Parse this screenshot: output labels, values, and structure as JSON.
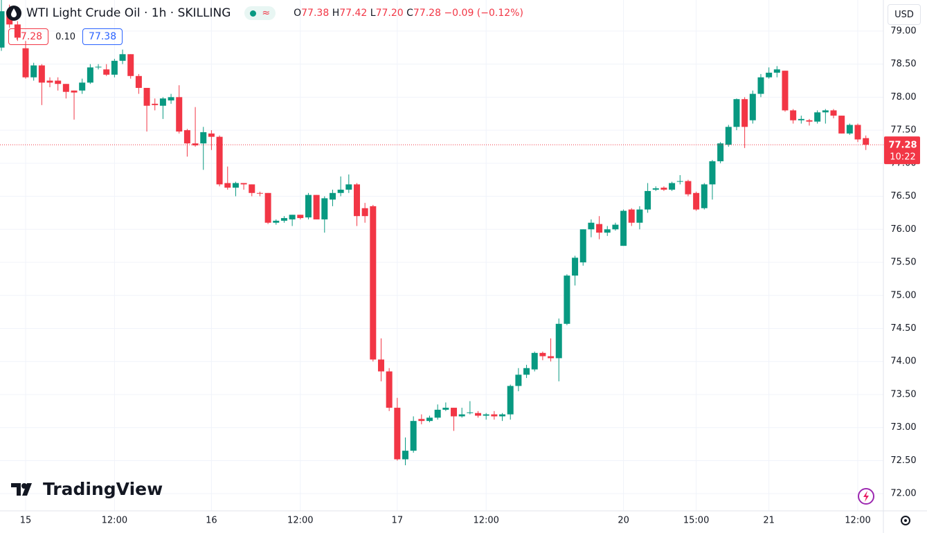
{
  "header": {
    "title": "WTI Light Crude Oil · 1h · SKILLING",
    "ohlc": [
      {
        "label": "O",
        "value": "77.38"
      },
      {
        "label": "H",
        "value": "77.42"
      },
      {
        "label": "L",
        "value": "77.20"
      },
      {
        "label": "C",
        "value": "77.28"
      }
    ],
    "change": "−0.09 (−0.12%)",
    "bid": "77.28",
    "spread": "0.10",
    "ask": "77.38"
  },
  "currency": "USD",
  "logo": "TradingView",
  "chart_data": {
    "type": "candlestick",
    "up_color": "#089981",
    "down_color": "#f23645",
    "grid": true,
    "categories": [
      null,
      null,
      null,
      "15",
      null,
      null,
      null,
      null,
      null,
      null,
      null,
      null,
      null,
      null,
      "12:00",
      null,
      null,
      null,
      null,
      null,
      null,
      null,
      null,
      null,
      null,
      null,
      "16",
      null,
      null,
      null,
      null,
      null,
      null,
      null,
      null,
      null,
      null,
      "12:00",
      null,
      null,
      null,
      null,
      null,
      null,
      null,
      null,
      null,
      null,
      null,
      "17",
      null,
      null,
      null,
      null,
      null,
      null,
      null,
      null,
      null,
      null,
      "12:00",
      null,
      null,
      null,
      null,
      null,
      null,
      null,
      null,
      null,
      null,
      null,
      null,
      null,
      null,
      null,
      null,
      "20",
      null,
      null,
      null,
      null,
      null,
      null,
      null,
      null,
      "15:00",
      null,
      null,
      null,
      null,
      null,
      null,
      null,
      null,
      "21",
      null,
      null,
      null,
      null,
      null,
      null,
      null,
      null,
      null,
      null,
      "12:00",
      null
    ],
    "open": [
      78.75,
      79.3,
      79.1,
      78.74,
      78.3,
      78.48,
      78.25,
      78.25,
      78.2,
      78.1,
      78.1,
      78.22,
      78.45,
      78.42,
      78.34,
      78.55,
      78.65,
      78.32,
      78.14,
      77.9,
      77.87,
      77.95,
      78.0,
      77.5,
      77.3,
      77.3,
      77.45,
      77.4,
      76.7,
      76.63,
      76.7,
      76.68,
      76.55,
      76.55,
      76.1,
      76.13,
      76.15,
      76.22,
      76.18,
      76.52,
      76.15,
      76.45,
      76.55,
      76.6,
      76.68,
      76.32,
      76.35,
      74.03,
      73.85,
      73.3,
      72.52,
      72.65,
      73.13,
      73.1,
      73.15,
      73.27,
      73.3,
      73.17,
      73.22,
      73.22,
      73.18,
      73.2,
      73.17,
      73.2,
      73.63,
      73.8,
      73.88,
      74.13,
      74.08,
      74.05,
      74.57,
      75.3,
      75.5,
      76.0,
      76.08,
      75.95,
      76.0,
      75.75,
      76.3,
      76.1,
      76.3,
      76.6,
      76.63,
      76.6,
      76.72,
      76.73,
      76.55,
      76.32,
      76.68,
      77.03,
      77.28,
      77.55,
      77.97,
      77.65,
      78.05,
      78.3,
      78.37,
      78.4,
      77.8,
      77.65,
      77.65,
      77.63,
      77.77,
      77.8,
      77.72,
      77.45,
      77.58,
      77.38
    ],
    "high": [
      79.5,
      79.4,
      79.15,
      78.85,
      78.52,
      78.5,
      78.3,
      78.3,
      78.2,
      78.1,
      78.28,
      78.5,
      78.5,
      78.5,
      78.58,
      78.72,
      78.65,
      78.35,
      78.14,
      77.98,
      78.0,
      78.05,
      78.18,
      77.52,
      77.85,
      77.55,
      77.5,
      77.42,
      76.95,
      76.72,
      76.7,
      76.68,
      76.57,
      76.55,
      76.15,
      76.2,
      76.22,
      76.22,
      76.55,
      76.52,
      76.5,
      76.6,
      76.8,
      76.83,
      76.7,
      76.4,
      76.37,
      74.35,
      73.9,
      73.45,
      72.85,
      73.17,
      73.2,
      73.18,
      73.35,
      73.38,
      73.3,
      73.3,
      73.4,
      73.25,
      73.22,
      73.25,
      73.22,
      73.65,
      73.9,
      73.95,
      74.15,
      74.15,
      74.35,
      74.65,
      75.32,
      75.6,
      76.0,
      76.15,
      76.2,
      76.05,
      76.1,
      76.3,
      76.32,
      76.35,
      76.7,
      76.65,
      76.65,
      76.72,
      76.82,
      76.75,
      76.57,
      76.7,
      77.05,
      77.32,
      77.58,
      77.98,
      78.0,
      78.1,
      78.35,
      78.45,
      78.47,
      78.4,
      77.82,
      77.72,
      77.67,
      77.8,
      77.82,
      77.82,
      77.72,
      77.6,
      77.6,
      77.42
    ],
    "low": [
      78.7,
      79.05,
      78.85,
      78.28,
      78.25,
      77.88,
      78.15,
      78.1,
      77.98,
      77.66,
      78.05,
      78.2,
      78.42,
      78.32,
      78.3,
      78.5,
      78.28,
      78.05,
      77.48,
      77.8,
      77.67,
      77.9,
      77.45,
      77.1,
      77.25,
      76.9,
      77.2,
      76.65,
      76.6,
      76.5,
      76.6,
      76.5,
      76.5,
      76.08,
      76.07,
      76.1,
      76.05,
      76.15,
      76.15,
      76.15,
      75.95,
      76.35,
      76.5,
      76.55,
      76.05,
      76.1,
      74.0,
      73.7,
      73.25,
      72.5,
      72.43,
      72.62,
      73.05,
      73.08,
      73.12,
      73.25,
      72.95,
      73.15,
      73.2,
      73.15,
      73.12,
      73.12,
      73.1,
      73.12,
      73.55,
      73.75,
      73.85,
      74.02,
      74.0,
      73.7,
      74.55,
      75.15,
      75.45,
      75.88,
      75.85,
      75.9,
      75.98,
      75.75,
      76.05,
      76.0,
      76.25,
      76.58,
      76.58,
      76.58,
      76.68,
      76.5,
      76.28,
      76.3,
      76.45,
      77.0,
      77.25,
      77.5,
      77.23,
      77.6,
      78.0,
      78.28,
      78.3,
      77.78,
      77.6,
      77.6,
      77.57,
      77.6,
      77.6,
      77.68,
      77.45,
      77.43,
      77.32,
      77.2
    ],
    "close": [
      79.3,
      79.1,
      78.9,
      78.3,
      78.48,
      78.22,
      78.22,
      78.2,
      78.08,
      78.07,
      78.22,
      78.45,
      78.46,
      78.34,
      78.55,
      78.65,
      78.32,
      78.14,
      77.87,
      77.88,
      77.98,
      78.0,
      77.48,
      77.3,
      77.27,
      77.47,
      77.4,
      76.68,
      76.63,
      76.7,
      76.68,
      76.55,
      76.54,
      76.1,
      76.13,
      76.17,
      76.22,
      76.17,
      76.52,
      76.15,
      76.47,
      76.55,
      76.6,
      76.68,
      76.2,
      76.2,
      74.03,
      73.85,
      73.3,
      72.52,
      72.65,
      73.1,
      73.1,
      73.15,
      73.27,
      73.3,
      73.17,
      73.2,
      73.23,
      73.18,
      73.2,
      73.17,
      73.2,
      73.63,
      73.8,
      73.9,
      74.13,
      74.08,
      74.05,
      74.57,
      75.3,
      75.57,
      76.0,
      76.1,
      75.95,
      76.0,
      76.07,
      76.28,
      76.1,
      76.3,
      76.58,
      76.62,
      76.6,
      76.7,
      76.73,
      76.53,
      76.3,
      76.68,
      77.03,
      77.3,
      77.55,
      77.97,
      77.55,
      78.05,
      78.3,
      78.37,
      78.42,
      77.8,
      77.65,
      77.67,
      77.63,
      77.77,
      77.8,
      77.72,
      77.45,
      77.58,
      77.36,
      77.28
    ],
    "last_price": 77.28,
    "countdown": "10:22",
    "ylim": [
      71.74,
      79.47
    ],
    "yticks": [
      {
        "value": 72,
        "label": "72.00"
      },
      {
        "value": 72.5,
        "label": "72.50"
      },
      {
        "value": 73,
        "label": "73.00"
      },
      {
        "value": 73.5,
        "label": "73.50"
      },
      {
        "value": 74,
        "label": "74.00"
      },
      {
        "value": 74.5,
        "label": "74.50"
      },
      {
        "value": 75,
        "label": "75.00"
      },
      {
        "value": 75.5,
        "label": "75.50"
      },
      {
        "value": 76,
        "label": "76.00"
      },
      {
        "value": 76.5,
        "label": "76.50"
      },
      {
        "value": 77,
        "label": "77.00"
      },
      {
        "value": 77.5,
        "label": "77.50"
      },
      {
        "value": 78,
        "label": "78.00"
      },
      {
        "value": 78.5,
        "label": "78.50"
      },
      {
        "value": 79,
        "label": "79.00"
      }
    ]
  }
}
